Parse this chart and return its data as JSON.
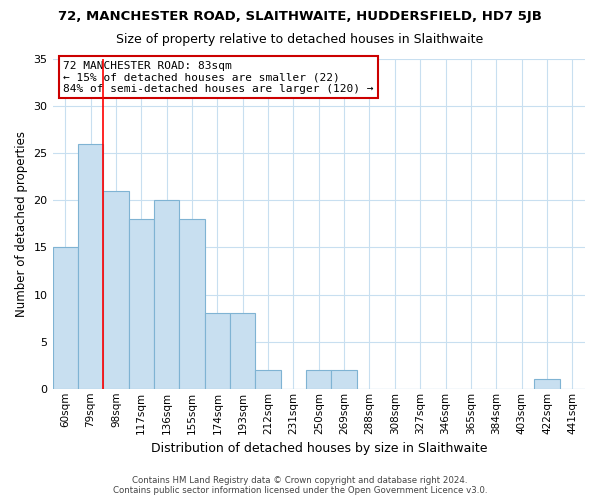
{
  "title1": "72, MANCHESTER ROAD, SLAITHWAITE, HUDDERSFIELD, HD7 5JB",
  "title2": "Size of property relative to detached houses in Slaithwaite",
  "xlabel": "Distribution of detached houses by size in Slaithwaite",
  "ylabel": "Number of detached properties",
  "bar_labels": [
    "60sqm",
    "79sqm",
    "98sqm",
    "117sqm",
    "136sqm",
    "155sqm",
    "174sqm",
    "193sqm",
    "212sqm",
    "231sqm",
    "250sqm",
    "269sqm",
    "288sqm",
    "308sqm",
    "327sqm",
    "346sqm",
    "365sqm",
    "384sqm",
    "403sqm",
    "422sqm",
    "441sqm"
  ],
  "bar_values": [
    15,
    26,
    21,
    18,
    20,
    18,
    8,
    8,
    2,
    0,
    2,
    2,
    0,
    0,
    0,
    0,
    0,
    0,
    0,
    1,
    0
  ],
  "bar_color": "#c8dff0",
  "bar_edge_color": "#7fb3d3",
  "grid_color": "#c8dff0",
  "red_line_x": 1.5,
  "ylim": [
    0,
    35
  ],
  "yticks": [
    0,
    5,
    10,
    15,
    20,
    25,
    30,
    35
  ],
  "annotation_line1": "72 MANCHESTER ROAD: 83sqm",
  "annotation_line2": "← 15% of detached houses are smaller (22)",
  "annotation_line3": "84% of semi-detached houses are larger (120) →",
  "annotation_box_color": "#ffffff",
  "annotation_box_edge": "#cc0000",
  "footer1": "Contains HM Land Registry data © Crown copyright and database right 2024.",
  "footer2": "Contains public sector information licensed under the Open Government Licence v3.0."
}
